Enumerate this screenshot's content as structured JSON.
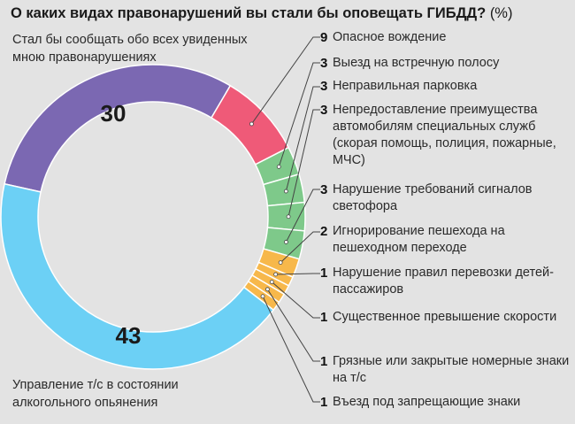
{
  "title": "О каких видах правонарушений вы стали бы оповещать ГИБДД?",
  "title_unit": "(%)",
  "colors": {
    "background": "#e3e3e3",
    "purple": "#7b68b2",
    "blue": "#6cd0f5",
    "red": "#ef5a78",
    "green": "#7ec98a",
    "orange": "#f7b84b",
    "leader": "#444444"
  },
  "chart_data": {
    "type": "pie",
    "title": "О каких видах правонарушений вы стали бы оповещать ГИБДД?",
    "unit": "%",
    "slices": [
      {
        "label": "Стал бы сообщать обо всех увиденных мною правонарушениях",
        "value": 30,
        "color": "#7b68b2"
      },
      {
        "label": "Опасное вождение",
        "value": 9,
        "color": "#ef5a78"
      },
      {
        "label": "Выезд на встречную полосу",
        "value": 3,
        "color": "#7ec98a"
      },
      {
        "label": "Неправильная парковка",
        "value": 3,
        "color": "#7ec98a"
      },
      {
        "label": "Непредоставление преимущества автомобилям специальных служб (скорая помощь, полиция, пожарные, МЧС)",
        "value": 3,
        "color": "#7ec98a"
      },
      {
        "label": "Нарушение требований сигналов светофора",
        "value": 3,
        "color": "#7ec98a"
      },
      {
        "label": "Игнорирование пешехода на пешеходном переходе",
        "value": 2,
        "color": "#f7b84b"
      },
      {
        "label": "Нарушение правил перевозки детей-пассажиров",
        "value": 1,
        "color": "#f7b84b"
      },
      {
        "label": "Существенное превышение скорости",
        "value": 1,
        "color": "#f7b84b"
      },
      {
        "label": "Грязные или закрытые номерные знаки на т/с",
        "value": 1,
        "color": "#f7b84b"
      },
      {
        "label": "Въезд под запрещающие знаки",
        "value": 1,
        "color": "#f7b84b"
      },
      {
        "label": "Управление т/с в состоянии алкогольного опьянения",
        "value": 43,
        "color": "#6cd0f5"
      }
    ]
  },
  "labels": {
    "top_left": "Стал бы сообщать обо всех увиденных мною правонарушениях",
    "bottom_left": "Управление т/с в состоянии алкогольного опьянения",
    "big_30": "30",
    "big_43": "43"
  },
  "categories": [
    {
      "num": "9",
      "text": "Опасное вождение"
    },
    {
      "num": "3",
      "text": "Выезд на встречную полосу"
    },
    {
      "num": "3",
      "text": "Неправильная парковка"
    },
    {
      "num": "3",
      "text": "Непредоставление преимущества автомобилям специальных служб (скорая помощь, полиция, пожарные, МЧС)"
    },
    {
      "num": "3",
      "text": "Нарушение требований сигналов светофора"
    },
    {
      "num": "2",
      "text": "Игнорирование пешехода на пешеходном переходе"
    },
    {
      "num": "1",
      "text": "Нарушение правил перевозки детей-пассажиров"
    },
    {
      "num": "1",
      "text": "Существенное превышение скорости"
    },
    {
      "num": "1",
      "text": "Грязные или закрытые номерные знаки на т/с"
    },
    {
      "num": "1",
      "text": "Въезд под запрещающие знаки"
    }
  ]
}
